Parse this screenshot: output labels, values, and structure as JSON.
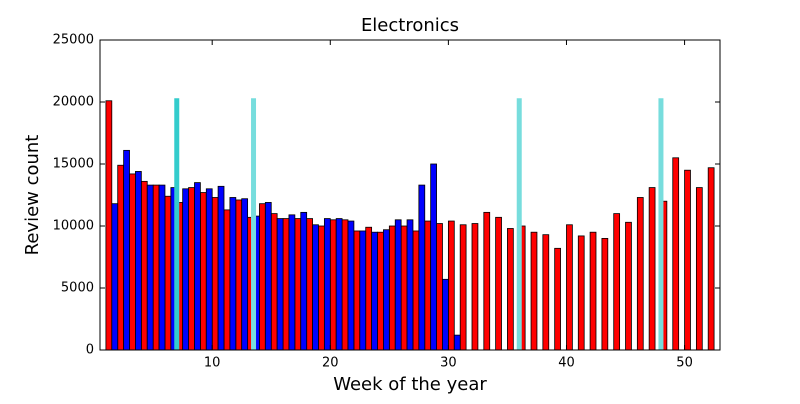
{
  "chart_data": {
    "type": "bar",
    "title": "Electronics",
    "x_label": "Week of the year",
    "y_label": "Review count",
    "x": [
      1,
      2,
      3,
      4,
      5,
      6,
      7,
      8,
      9,
      10,
      11,
      12,
      13,
      14,
      15,
      16,
      17,
      18,
      19,
      20,
      21,
      22,
      23,
      24,
      25,
      26,
      27,
      28,
      29,
      30,
      31,
      32,
      33,
      34,
      35,
      36,
      37,
      38,
      39,
      40,
      41,
      42,
      43,
      44,
      45,
      46,
      47,
      48,
      49,
      50,
      51,
      52
    ],
    "series": [
      {
        "color": "#ff0000",
        "values": [
          20100,
          14900,
          14200,
          13600,
          13300,
          12400,
          11900,
          13100,
          12700,
          12300,
          11300,
          12100,
          10700,
          11800,
          11000,
          10600,
          10600,
          10600,
          10000,
          10500,
          10500,
          9600,
          9900,
          9500,
          10000,
          10000,
          9600,
          10400,
          10200,
          10400,
          10100,
          10200,
          11100,
          10700,
          9800,
          10000,
          9500,
          9300,
          8200,
          10100,
          9200,
          9500,
          9000,
          11000,
          10300,
          12300,
          13100,
          12000,
          15500,
          14500,
          13100,
          14700
        ]
      },
      {
        "color": "#0000ff",
        "values": [
          11800,
          16100,
          14400,
          13300,
          13300,
          13100,
          13000,
          13500,
          13000,
          13200,
          12300,
          12200,
          10800,
          11900,
          10600,
          10900,
          11100,
          10100,
          10600,
          10600,
          10400,
          9600,
          9500,
          9700,
          10500,
          10500,
          13300,
          15000,
          5700,
          1200,
          null,
          null,
          null,
          null,
          null,
          null,
          null,
          null,
          null,
          null,
          null,
          null,
          null,
          null,
          null,
          null,
          null,
          null,
          null,
          null,
          null,
          null
        ]
      }
    ],
    "vlines": {
      "x": [
        7,
        13.5,
        36,
        48
      ],
      "ymax": 20300,
      "colors": [
        "#33cccc",
        "#77dddd",
        "#77dddd",
        "#77dddd"
      ]
    },
    "xlim": [
      0.5,
      53
    ],
    "xticks": [
      10,
      20,
      30,
      40,
      50
    ],
    "ylim": [
      0,
      25000
    ],
    "yticks": [
      0,
      5000,
      10000,
      15000,
      20000,
      25000
    ]
  }
}
